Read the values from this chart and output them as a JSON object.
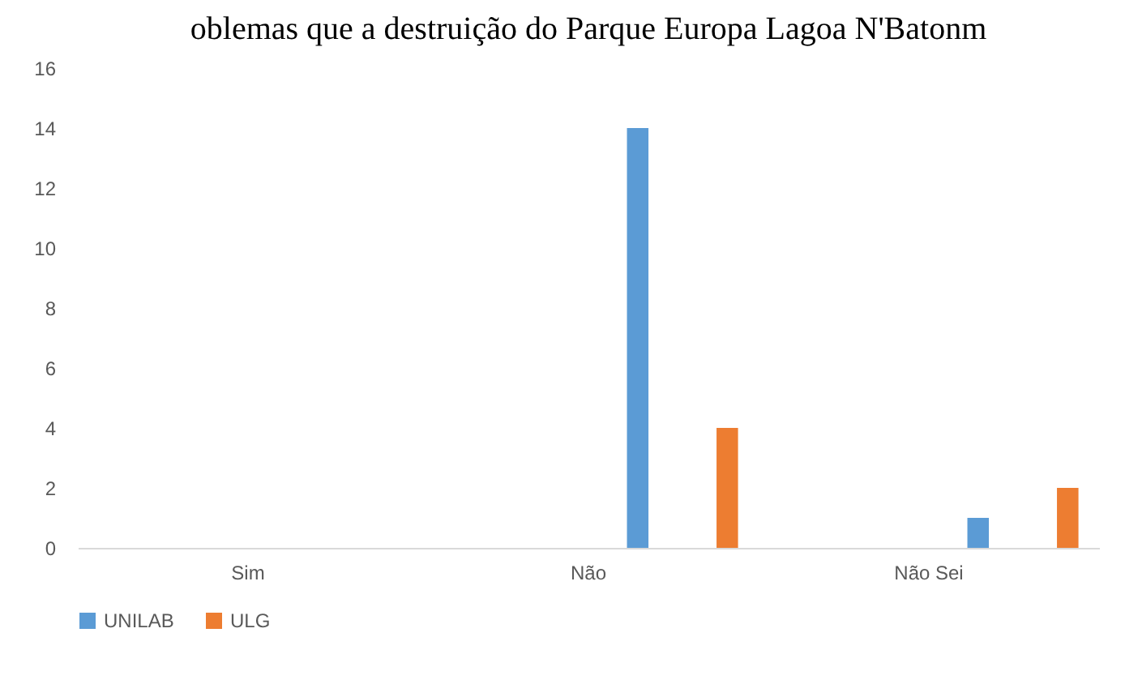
{
  "chart_data": {
    "type": "bar",
    "title": "oblemas que a destruição do Parque Europa Lagoa N'Batonm",
    "categories": [
      "Sim",
      "Não",
      "Não Sei"
    ],
    "series": [
      {
        "name": "UNILAB",
        "color": "#5b9bd5",
        "values": [
          0,
          14,
          1
        ]
      },
      {
        "name": "ULG",
        "color": "#ed7d31",
        "values": [
          0,
          4,
          2
        ]
      }
    ],
    "ylim": [
      0,
      16
    ],
    "yticks": [
      0,
      2,
      4,
      6,
      8,
      10,
      12,
      14,
      16
    ],
    "legend": "bottom"
  }
}
